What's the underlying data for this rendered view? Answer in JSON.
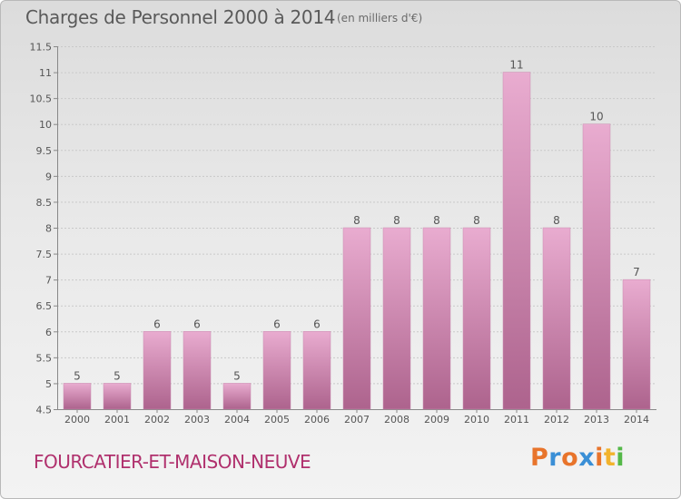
{
  "header": {
    "title": "Charges de Personnel 2000 à 2014",
    "unit": "(en milliers d'€)"
  },
  "footer": {
    "town": "FOURCATIER-ET-MAISON-NEUVE",
    "brand": "Proxiti",
    "brand_colors": [
      "#e8742b",
      "#3a8fd6",
      "#e8742b",
      "#3a8fd6",
      "#e8742b",
      "#f2b32d",
      "#54b848"
    ]
  },
  "colors": {
    "bar_light": "#e9acd0",
    "bar_dark": "#ad638d",
    "axis_text": "#555555",
    "grid": "#c9c9c9",
    "town_text": "#b0306d"
  },
  "chart_data": {
    "type": "bar",
    "categories": [
      "2000",
      "2001",
      "2002",
      "2003",
      "2004",
      "2005",
      "2006",
      "2007",
      "2008",
      "2009",
      "2010",
      "2011",
      "2012",
      "2013",
      "2014"
    ],
    "values": [
      5,
      5,
      6,
      6,
      5,
      6,
      6,
      8,
      8,
      8,
      8,
      11,
      8,
      10,
      7
    ],
    "ylim": [
      4.5,
      11.5
    ],
    "yticks": [
      "4.5",
      "5",
      "5.5",
      "6",
      "6.5",
      "7",
      "7.5",
      "8",
      "8.5",
      "9",
      "9.5",
      "10",
      "10.5",
      "11",
      "11.5"
    ],
    "grid": true,
    "title": "Charges de Personnel 2000 à 2014",
    "xlabel": "",
    "ylabel": ""
  }
}
